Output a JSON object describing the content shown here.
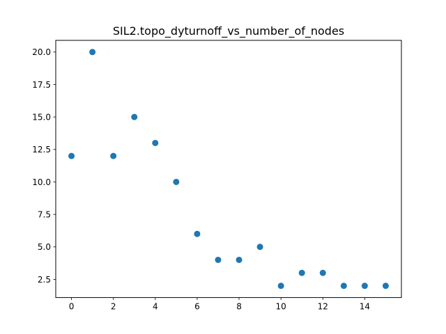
{
  "chart_data": {
    "type": "scatter",
    "title": "SIL2.topo_dyturnoff_vs_number_of_nodes",
    "xlabel": "",
    "ylabel": "",
    "xlim": [
      -0.75,
      15.75
    ],
    "ylim": [
      1.1,
      20.9
    ],
    "xticks": [
      0,
      2,
      4,
      6,
      8,
      10,
      12,
      14
    ],
    "xtick_labels": [
      "0",
      "2",
      "4",
      "6",
      "8",
      "10",
      "12",
      "14"
    ],
    "yticks": [
      2.5,
      5.0,
      7.5,
      10.0,
      12.5,
      15.0,
      17.5,
      20.0
    ],
    "ytick_labels": [
      "2.5",
      "5.0",
      "7.5",
      "10.0",
      "12.5",
      "15.0",
      "17.5",
      "20.0"
    ],
    "grid": false,
    "marker_color": "#1f77b4",
    "x": [
      0,
      1,
      2,
      3,
      4,
      5,
      6,
      7,
      8,
      9,
      10,
      11,
      12,
      13,
      14,
      15
    ],
    "y": [
      12,
      20,
      12,
      15,
      13,
      10,
      6,
      4,
      4,
      5,
      2,
      3,
      3,
      2,
      2,
      2
    ]
  }
}
